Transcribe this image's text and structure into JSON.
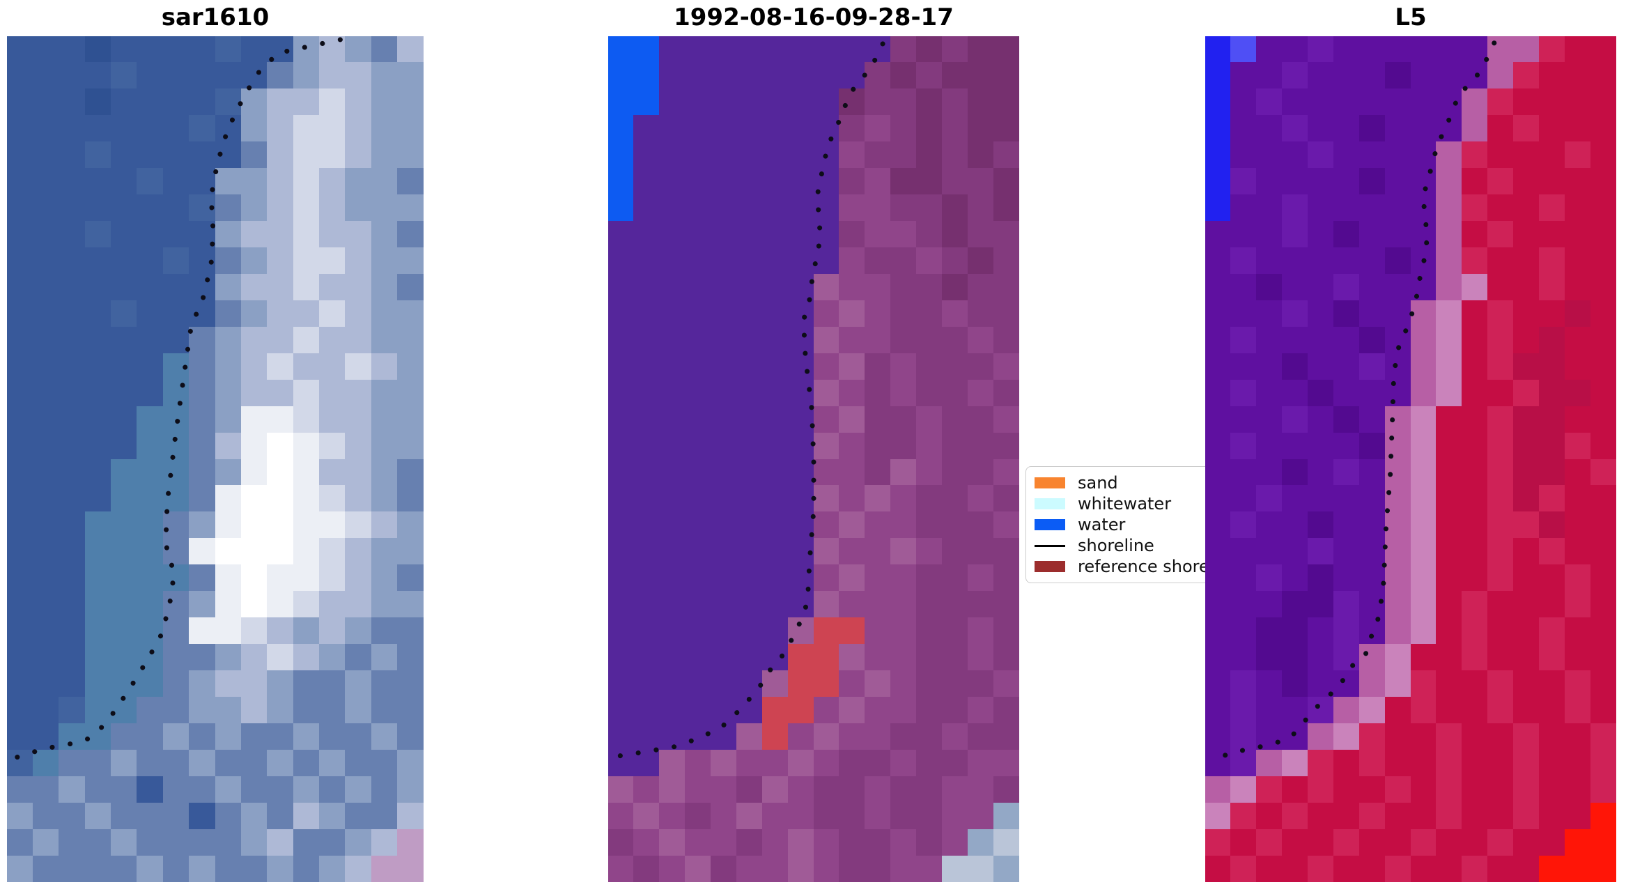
{
  "figure": {
    "background": "#ffffff",
    "shoreline_dot_color": "#0d0d18"
  },
  "panels": [
    {
      "title": "sar1610",
      "palette": {
        "a": "#2f5192",
        "b": "#38599a",
        "c": "#41639f",
        "e": "#4f7fab",
        "f": "#6780b0",
        "g": "#8ba0c4",
        "h": "#aeb9d6",
        "i": "#d2d8e8",
        "j": "#eceff5",
        "k": "#ffffff",
        "p": "#bf9cc4"
      },
      "grid": [
        "bbbabbbbcbbghgfh",
        "bbbbcbbbbbfghhgg",
        "bbbabbbbcghhihgg",
        "bbbbbbbcbghiihgg",
        "bbbcbbbbbfhiihgg",
        "bbbbbcbbgghihggf",
        "bbbbbbbcfghihggg",
        "bbbcbbbbghhihhgf",
        "bbbbbbcbfghiihgg",
        "bbbbbbbbghhihhgf",
        "bbbbcbbbfghhihgg",
        "bbbbbbbfghhihhgg",
        "bbbbbbefghihhihg",
        "bbbbbbefghhihhgg",
        "bbbbbeefgjjihhgg",
        "bbbbbeefhjkjihgg",
        "bbbbeeefgjkjhhgf",
        "bbbbeeefjkkjihgf",
        "bbbeeefgjkkjjihg",
        "bbbeeefjkkkjihgg",
        "bbbeeeefjkjjihgf",
        "bbbeeefgjkjihhgg",
        "bbbeeefjjihghgff",
        "bbbeeeffghihgfgf",
        "bbbeeefghhgffgff",
        "bbceeffgghgffgff",
        "bbeeffgfgffgffgf",
        "ceffgffgffgfgffg",
        "ffgffbffgffgfgfg",
        "gffgfffbfgfhgffh",
        "fgffgffffghffghp",
        "gffffgfgffgfghpp"
      ],
      "shoreline": [
        [
          0.8,
          0.004
        ],
        [
          0.65,
          0.02
        ],
        [
          0.6,
          0.045
        ],
        [
          0.565,
          0.075
        ],
        [
          0.53,
          0.11
        ],
        [
          0.505,
          0.15
        ],
        [
          0.49,
          0.19
        ],
        [
          0.495,
          0.23
        ],
        [
          0.49,
          0.27
        ],
        [
          0.468,
          0.315
        ],
        [
          0.443,
          0.34
        ],
        [
          0.425,
          0.4
        ],
        [
          0.405,
          0.47
        ],
        [
          0.385,
          0.55
        ],
        [
          0.381,
          0.6
        ],
        [
          0.401,
          0.635
        ],
        [
          0.393,
          0.665
        ],
        [
          0.373,
          0.705
        ],
        [
          0.34,
          0.735
        ],
        [
          0.3,
          0.767
        ],
        [
          0.26,
          0.797
        ],
        [
          0.222,
          0.82
        ],
        [
          0.19,
          0.832
        ],
        [
          0.14,
          0.838
        ],
        [
          0.09,
          0.842
        ],
        [
          0.04,
          0.85
        ],
        [
          0.005,
          0.855
        ]
      ]
    },
    {
      "title": "1992-08-16-09-28-17",
      "palette": {
        "B": "#0d5bf2",
        "P": "#55269b",
        "m": "#76306f",
        "n": "#833a7e",
        "o": "#90458a",
        "q": "#a05b97",
        "r": "#ce4452",
        "s": "#93a8c6",
        "t": "#bac5d8"
      },
      "grid": [
        "BBPPPPPPPPPnmnmm",
        "BBPPPPPPPPnmnmmm",
        "BBPPPPPPPmnnmnmm",
        "BPPPPPPPPnonmnmm",
        "BPPPPPPPPonnmnmn",
        "BPPPPPPPPnommnnm",
        "BPPPPPPPPoonnmnm",
        "PPPPPPPPPnoonmnn",
        "PPPPPPPPPonnonmn",
        "PPPPPPPPqoonnmnn",
        "PPPPPPPPoqonnonn",
        "PPPPPPPPqoonnnon",
        "PPPPPPPPoqnonnno",
        "PPPPPPPPqononnon",
        "PPPPPPPPoqnnonno",
        "PPPPPPPPqonnonnn",
        "PPPPPPPPoonqonno",
        "PPPPPPPPqoqonnon",
        "PPPPPPPPoqoonnno",
        "PPPPPPPPqooqonnn",
        "PPPPPPPPoqoonnon",
        "PPPPPPPPqooonnnn",
        "PPPPPPPqrroonnon",
        "PPPPPPPrrqoonnon",
        "PPPPPPqrroqonnno",
        "PPPPPPrroqoonnon",
        "PPPPPqroqoonnonn",
        "PPqoqooqonnonnoo",
        "qoqoonqonnonnoon",
        "oqonoqoonnonnoos",
        "noqoonoqonnonost",
        "onoqnooqonnootts"
      ],
      "shoreline": [
        [
          0.668,
          0.009
        ],
        [
          0.64,
          0.037
        ],
        [
          0.61,
          0.054
        ],
        [
          0.588,
          0.068
        ],
        [
          0.563,
          0.099
        ],
        [
          0.534,
          0.13
        ],
        [
          0.52,
          0.161
        ],
        [
          0.508,
          0.19
        ],
        [
          0.515,
          0.222
        ],
        [
          0.512,
          0.252
        ],
        [
          0.498,
          0.281
        ],
        [
          0.49,
          0.311
        ],
        [
          0.475,
          0.336
        ],
        [
          0.48,
          0.38
        ],
        [
          0.495,
          0.44
        ],
        [
          0.5,
          0.5
        ],
        [
          0.5,
          0.56
        ],
        [
          0.49,
          0.62
        ],
        [
          0.486,
          0.66
        ],
        [
          0.48,
          0.676
        ],
        [
          0.469,
          0.691
        ],
        [
          0.453,
          0.706
        ],
        [
          0.439,
          0.721
        ],
        [
          0.417,
          0.737
        ],
        [
          0.389,
          0.752
        ],
        [
          0.371,
          0.767
        ],
        [
          0.349,
          0.781
        ],
        [
          0.325,
          0.792
        ],
        [
          0.3,
          0.808
        ],
        [
          0.27,
          0.818
        ],
        [
          0.22,
          0.83
        ],
        [
          0.16,
          0.84
        ],
        [
          0.1,
          0.845
        ],
        [
          0.04,
          0.85
        ],
        [
          0.005,
          0.852
        ]
      ]
    },
    {
      "title": "L5",
      "palette": {
        "C": "#2121f0",
        "E": "#4f4ff5",
        "V": "#5f10a0",
        "W": "#6a1aab",
        "U": "#530a90",
        "x": "#b75fa5",
        "y": "#ca83bb",
        "R": "#c50d44",
        "S": "#cf2257",
        "T": "#b80f47",
        "F": "#ff1507"
      },
      "grid": [
        "CEVVWVVVVVVxxSRR",
        "CVVWVVVUVVVxSRRR",
        "CVWVVVVVVVxSRRRR",
        "CVVWVVUVVVxRSRRR",
        "CVVVWVVVVxSRRRSR",
        "CWVVVVUVVxRSRRRR",
        "CVVWVVVVVxSRRSRR",
        "VVVWVUVVVxRSRRRR",
        "VWVVVVVUVxSRRSRR",
        "VVUVVWVVVxyRRSRR",
        "VVVWVUVVxyRSRRTR",
        "VWVVVVUVxyRSRTRR",
        "VVVUVVWVxyRSTTRR",
        "VWVVUVVVxyRRSTTR",
        "VVVWVUVxyRRSTTRR",
        "VWVVVVUxyRRSTTSR",
        "VVVUVWVxyRRSTTRS",
        "VVWVVVVxyRRSTSRR",
        "VWVVUVVxyRRSSTRR",
        "VVVVWVVxyRRSRSRR",
        "VVWVUVVxyRRSRRSR",
        "VVVUUWVxyRSRRRSR",
        "VVUUVWVxyRSRRSRR",
        "VVUUVWxyRRSRRSRR",
        "VWVUVVxySRRSRRSR",
        "VWVVWxyRSRRSRRSR",
        "VWVVxySRRSRRSRRS",
        "VWxySRSRRSRRSRRS",
        "xySRSRRSRSRRSRRS",
        "ySRSRRSRRSRRSRRF",
        "SRSRRSRRSRRSRRFF",
        "RSRRSRRSRRSRRFFF"
      ],
      "shoreline": [
        [
          0.703,
          0.008
        ],
        [
          0.675,
          0.037
        ],
        [
          0.647,
          0.056
        ],
        [
          0.619,
          0.067
        ],
        [
          0.592,
          0.1
        ],
        [
          0.564,
          0.13
        ],
        [
          0.547,
          0.161
        ],
        [
          0.53,
          0.19
        ],
        [
          0.537,
          0.222
        ],
        [
          0.539,
          0.252
        ],
        [
          0.524,
          0.281
        ],
        [
          0.513,
          0.311
        ],
        [
          0.497,
          0.338
        ],
        [
          0.471,
          0.367
        ],
        [
          0.459,
          0.398
        ],
        [
          0.455,
          0.46
        ],
        [
          0.45,
          0.52
        ],
        [
          0.44,
          0.58
        ],
        [
          0.434,
          0.645
        ],
        [
          0.428,
          0.668
        ],
        [
          0.419,
          0.692
        ],
        [
          0.402,
          0.712
        ],
        [
          0.39,
          0.731
        ],
        [
          0.376,
          0.735
        ],
        [
          0.347,
          0.75
        ],
        [
          0.33,
          0.766
        ],
        [
          0.31,
          0.776
        ],
        [
          0.292,
          0.782
        ],
        [
          0.259,
          0.8
        ],
        [
          0.213,
          0.826
        ],
        [
          0.181,
          0.834
        ],
        [
          0.154,
          0.837
        ],
        [
          0.127,
          0.841
        ],
        [
          0.098,
          0.844
        ],
        [
          0.071,
          0.845
        ],
        [
          0.044,
          0.851
        ],
        [
          0.017,
          0.852
        ]
      ]
    }
  ],
  "legend": {
    "items": [
      {
        "label": "sand",
        "color": "#f8842f",
        "type": "patch"
      },
      {
        "label": "whitewater",
        "color": "#ccfbff",
        "type": "patch"
      },
      {
        "label": "water",
        "color": "#0b5cf5",
        "type": "patch"
      },
      {
        "label": "shoreline",
        "color": "#000000",
        "type": "line"
      },
      {
        "label": "reference shoreline",
        "color": "#9c2d2d",
        "type": "patch"
      }
    ]
  },
  "chart_data": {
    "type": "heatmap",
    "layout": "three image subplots side by side, shared dotted shoreline overlay, legend between 2nd and 3rd panel",
    "subplots": [
      {
        "title": "sar1610",
        "description": "SAR composite: steel-blue sea on left, pale blue-grey land on right, bright white surf/sand blob lower centre, pink tint bottom-right corner, dotted detected shoreline"
      },
      {
        "title": "1992-08-16-09-28-17",
        "description": "classified scene: flat purple water mass, bright blue water patch top-left, magenta/mauve land on right, red reference-shoreline patch at beach centre-bottom, light blue-grey steps bottom-right, dotted shoreline"
      },
      {
        "title": "L5",
        "description": "Landsat-5 false colour: violet sea left, crimson land right, bright blue patch top-left, pink transition band along dotted shoreline, saturated red wedge bottom-right corner"
      }
    ],
    "legend_entries": [
      "sand",
      "whitewater",
      "water",
      "shoreline",
      "reference shoreline"
    ]
  }
}
